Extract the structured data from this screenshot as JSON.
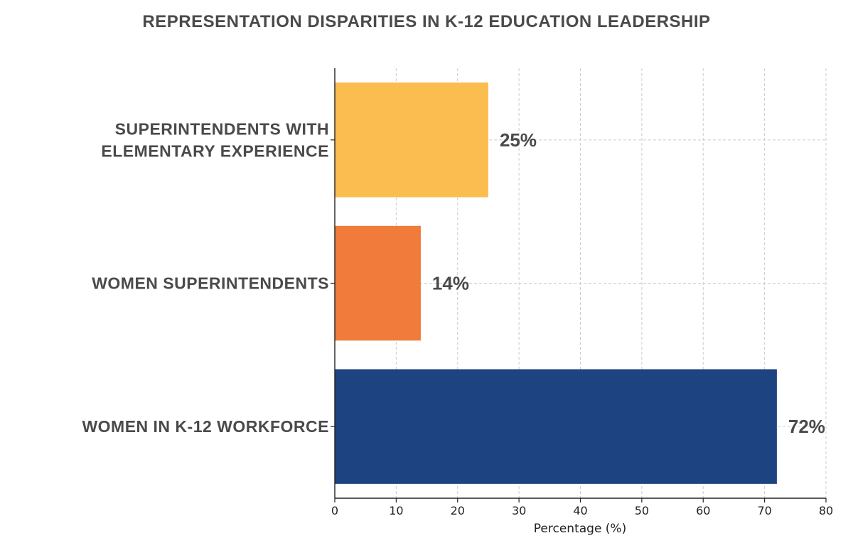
{
  "chart_data": {
    "type": "bar",
    "orientation": "horizontal",
    "title": "REPRESENTATION DISPARITIES IN K-12 EDUCATION LEADERSHIP",
    "xlabel": "Percentage (%)",
    "ylabel": "",
    "xlim": [
      0,
      80
    ],
    "xticks": [
      0,
      10,
      20,
      30,
      40,
      50,
      60,
      70,
      80
    ],
    "grid": true,
    "bars": [
      {
        "category": [
          "SUPERINTENDENTS WITH",
          "ELEMENTARY EXPERIENCE"
        ],
        "value": 25,
        "label": "25%",
        "color": "#fbbd4f"
      },
      {
        "category": [
          "WOMEN SUPERINTENDENTS"
        ],
        "value": 14,
        "label": "14%",
        "color": "#f07b3a"
      },
      {
        "category": [
          "WOMEN IN K-12 WORKFORCE"
        ],
        "value": 72,
        "label": "72%",
        "color": "#1d4380"
      }
    ]
  }
}
